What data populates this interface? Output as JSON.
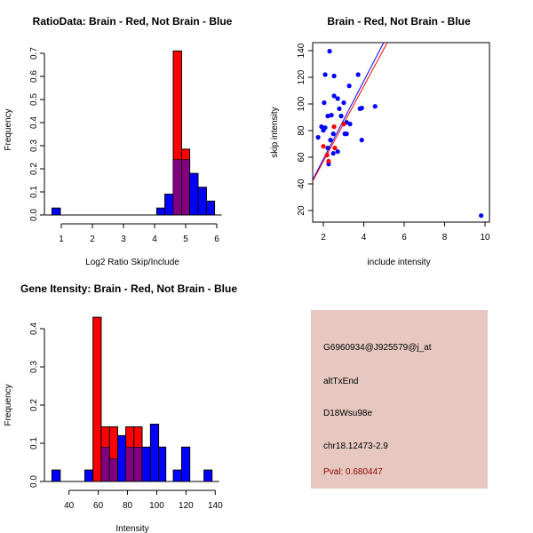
{
  "colors": {
    "red": "#ff0000",
    "blue": "#0000ff",
    "overlap": "#800080",
    "box": "#e6c8c0",
    "pval": "#8b0000"
  },
  "chart_data": [
    {
      "type": "bar",
      "title": "RatioData: Brain - Red, Not Brain - Blue",
      "xlabel": "Log2 Ratio Skip/Include",
      "ylabel": "Frequency",
      "xticks": [
        1,
        2,
        3,
        4,
        5,
        6
      ],
      "yticks": [
        0.0,
        0.1,
        0.2,
        0.3,
        0.4,
        0.5,
        0.6,
        0.7
      ],
      "ytick_labels": [
        "0.0",
        "0.1",
        "0.2",
        "0.3",
        "0.4",
        "0.5",
        "0.6",
        "0.7"
      ],
      "ylim": [
        0,
        0.7
      ],
      "bins": [
        {
          "x0": 0.7,
          "x1": 0.97,
          "blue": 0.03,
          "red": 0
        },
        {
          "x0": 4.07,
          "x1": 4.33,
          "blue": 0.03,
          "red": 0
        },
        {
          "x0": 4.33,
          "x1": 4.6,
          "blue": 0.09,
          "red": 0
        },
        {
          "x0": 4.6,
          "x1": 4.87,
          "blue": 0.24,
          "red": 0.71
        },
        {
          "x0": 4.87,
          "x1": 5.13,
          "blue": 0.24,
          "red": 0.285
        },
        {
          "x0": 5.13,
          "x1": 5.4,
          "blue": 0.18,
          "red": 0
        },
        {
          "x0": 5.4,
          "x1": 5.67,
          "blue": 0.12,
          "red": 0
        },
        {
          "x0": 5.67,
          "x1": 5.93,
          "blue": 0.06,
          "red": 0
        }
      ]
    },
    {
      "type": "scatter",
      "title": "Brain - Red, Not Brain - Blue",
      "xlabel": "include intensity",
      "ylabel": "skip intensity",
      "xticks": [
        2,
        4,
        6,
        8,
        10
      ],
      "yticks": [
        20,
        40,
        60,
        80,
        100,
        120,
        140
      ],
      "xlim": [
        1.47,
        10.2
      ],
      "ylim": [
        11.3,
        145.8
      ],
      "blue_points": [
        [
          2.31,
          139.6
        ],
        [
          2.09,
          122
        ],
        [
          2.53,
          121
        ],
        [
          3.72,
          122
        ],
        [
          3.28,
          113.6
        ],
        [
          2.04,
          100.9
        ],
        [
          2.53,
          106
        ],
        [
          2.71,
          104
        ],
        [
          3.01,
          100.9
        ],
        [
          2.79,
          96.4
        ],
        [
          3.81,
          96.4
        ],
        [
          3.9,
          96.9
        ],
        [
          4.56,
          98.2
        ],
        [
          2.22,
          90.9
        ],
        [
          2.4,
          91.6
        ],
        [
          2.88,
          90.9
        ],
        [
          1.91,
          82.9
        ],
        [
          2.09,
          82.2
        ],
        [
          2.0,
          80.2
        ],
        [
          1.74,
          74.9
        ],
        [
          2.49,
          77.6
        ],
        [
          3.06,
          77.6
        ],
        [
          3.15,
          77.6
        ],
        [
          3.15,
          86.2
        ],
        [
          3.32,
          84.9
        ],
        [
          2.35,
          72.9
        ],
        [
          3.9,
          72.9
        ],
        [
          2.22,
          66.9
        ],
        [
          2.49,
          62.9
        ],
        [
          2.71,
          64.2
        ],
        [
          2.26,
          54.9
        ],
        [
          9.81,
          16.2
        ]
      ],
      "red_points": [
        [
          2.0,
          68.2
        ],
        [
          2.53,
          82.9
        ],
        [
          2.57,
          66.9
        ],
        [
          2.18,
          61.6
        ],
        [
          2.26,
          57
        ],
        [
          3.01,
          84.9
        ]
      ],
      "blue_line": {
        "slope": 29.3,
        "intercept": 0.0
      },
      "red_line": {
        "slope": 28.2,
        "intercept": 0.5
      }
    },
    {
      "type": "bar",
      "title": "Gene Itensity: Brain - Red, Not Brain - Blue",
      "xlabel": "Intensity",
      "ylabel": "Frequency",
      "xticks": [
        40,
        60,
        80,
        100,
        120,
        140
      ],
      "yticks": [
        0.0,
        0.1,
        0.2,
        0.3,
        0.4
      ],
      "ytick_labels": [
        "0.0",
        "0.1",
        "0.2",
        "0.3",
        "0.4"
      ],
      "ylim": [
        0,
        0.43
      ],
      "bins": [
        {
          "x0": 28.3,
          "x1": 34,
          "blue": 0.03,
          "red": 0
        },
        {
          "x0": 50.8,
          "x1": 56.4,
          "blue": 0.03,
          "red": 0
        },
        {
          "x0": 56.4,
          "x1": 62,
          "blue": 0,
          "red": 0.43
        },
        {
          "x0": 62,
          "x1": 67.7,
          "blue": 0.09,
          "red": 0.143
        },
        {
          "x0": 67.7,
          "x1": 73.3,
          "blue": 0.06,
          "red": 0.143
        },
        {
          "x0": 73.3,
          "x1": 78.8,
          "blue": 0.12,
          "red": 0
        },
        {
          "x0": 78.8,
          "x1": 84.4,
          "blue": 0.09,
          "red": 0.143
        },
        {
          "x0": 84.4,
          "x1": 90,
          "blue": 0.09,
          "red": 0.143
        },
        {
          "x0": 90,
          "x1": 95.7,
          "blue": 0.09,
          "red": 0
        },
        {
          "x0": 95.7,
          "x1": 101.3,
          "blue": 0.15,
          "red": 0
        },
        {
          "x0": 101.3,
          "x1": 106.2,
          "blue": 0.09,
          "red": 0
        },
        {
          "x0": 111.3,
          "x1": 117,
          "blue": 0.03,
          "red": 0
        },
        {
          "x0": 117,
          "x1": 122.6,
          "blue": 0.09,
          "red": 0
        },
        {
          "x0": 132.3,
          "x1": 137.8,
          "blue": 0.03,
          "red": 0
        }
      ]
    }
  ],
  "info": {
    "probe": "G6960934@J925579@j_at",
    "event": "altTxEnd",
    "gene": "D18Wsu98e",
    "location": "chr18.12473-2.9",
    "pval": "Pval: 0.680447"
  }
}
